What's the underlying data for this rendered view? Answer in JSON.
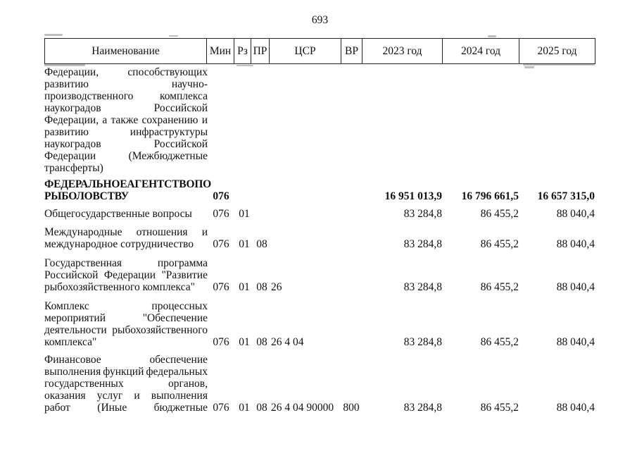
{
  "page": {
    "number": "693"
  },
  "table": {
    "header": {
      "name": "Наименование",
      "min": "Мин",
      "rz": "Рз",
      "pr": "ПР",
      "csr": "ЦСР",
      "vr": "ВР",
      "y2023": "2023 год",
      "y2024": "2024 год",
      "y2025": "2025 год"
    },
    "rows": [
      {
        "name_lines": [
          "Федерации, способствующих",
          "развитию научно-",
          "производственного комплекса",
          "наукоградов Российской",
          "Федерации, а также сохранению и",
          "развитию инфраструктуры",
          "наукоградов Российской",
          "Федерации (Межбюджетные",
          "трансферты)"
        ],
        "bold": false,
        "justify_last": false
      },
      {
        "name_lines": [
          "ФЕДЕРАЛЬНОЕ АГЕНТСТВО ПО",
          "РЫБОЛОВСТВУ"
        ],
        "bold": true,
        "justify_last": false,
        "min": "076",
        "y2023": "16 951 013,9",
        "y2024": "16 796 661,5",
        "y2025": "16 657 315,0"
      },
      {
        "name_lines": [
          "Общегосударственные вопросы"
        ],
        "bold": false,
        "justify_last": false,
        "min": "076",
        "rz": "01",
        "y2023": "83 284,8",
        "y2024": "86 455,2",
        "y2025": "88 040,4"
      },
      {
        "name_lines": [
          "Международные отношения и",
          "международное сотрудничество"
        ],
        "bold": false,
        "justify_last": false,
        "min": "076",
        "rz": "01",
        "pr": "08",
        "y2023": "83 284,8",
        "y2024": "86 455,2",
        "y2025": "88 040,4"
      },
      {
        "name_lines": [
          "Государственная программа",
          "Российской Федерации \"Развитие",
          "рыбохозяйственного комплекса\""
        ],
        "bold": false,
        "justify_last": false,
        "min": "076",
        "rz": "01",
        "pr": "08",
        "csr": "26",
        "y2023": "83 284,8",
        "y2024": "86 455,2",
        "y2025": "88 040,4"
      },
      {
        "name_lines": [
          "Комплекс процессных",
          "мероприятий \"Обеспечение",
          "деятельности рыбохозяйственного",
          "комплекса\""
        ],
        "bold": false,
        "justify_last": false,
        "min": "076",
        "rz": "01",
        "pr": "08",
        "csr": "26 4 04",
        "y2023": "83 284,8",
        "y2024": "86 455,2",
        "y2025": "88 040,4"
      },
      {
        "name_lines": [
          "Финансовое обеспечение",
          "выполнения функций федеральных",
          "государственных органов,",
          "оказания услуг и выполнения",
          "работ (Иные бюджетные"
        ],
        "bold": false,
        "justify_last": true,
        "min": "076",
        "rz": "01",
        "pr": "08",
        "csr": "26 4 04 90000",
        "vr": "800",
        "y2023": "83 284,8",
        "y2024": "86 455,2",
        "y2025": "88 040,4"
      }
    ]
  }
}
